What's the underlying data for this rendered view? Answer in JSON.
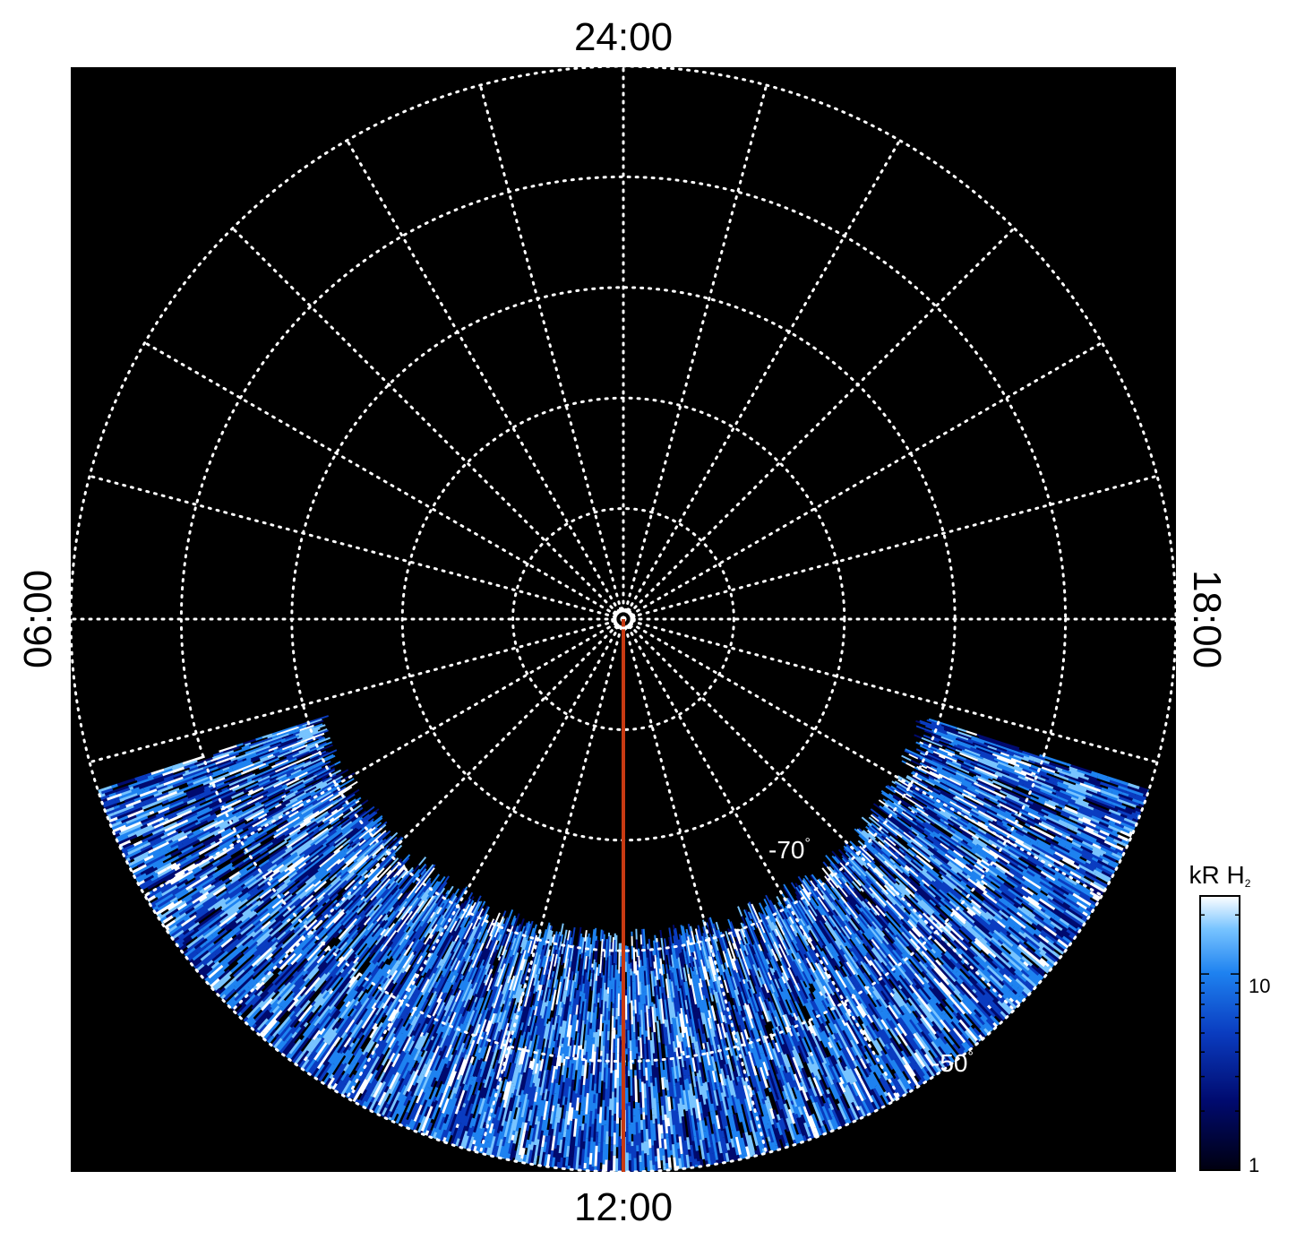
{
  "chart_data": {
    "type": "heatmap",
    "projection": "polar",
    "local_time_labels": {
      "top": "24:00",
      "left": "06:00",
      "right": "18:00",
      "bottom": "12:00"
    },
    "latitude_labels": [
      {
        "lat": -70,
        "text": "-70",
        "unit": "°"
      },
      {
        "lat": -50,
        "text": "-50",
        "unit": "°"
      }
    ],
    "colorbar": {
      "title": "kR H",
      "title_subscript": "2",
      "scale": "log",
      "range": [
        1,
        25
      ],
      "ticks": [
        {
          "value": 1,
          "label": "1"
        },
        {
          "value": 10,
          "label": "10"
        }
      ]
    },
    "emission_lat_range": [
      -60,
      -45
    ],
    "emission_local_time_range": [
      7.2,
      16.8
    ],
    "highlight_line": {
      "local_time": 12,
      "color": "#c83a12"
    },
    "colors": {
      "background": "#000000",
      "grid": "#ffffff",
      "colormap": [
        "#000010",
        "#000a6e",
        "#0a3cc0",
        "#1e82f0",
        "#78c4ff",
        "#ffffff"
      ]
    }
  }
}
